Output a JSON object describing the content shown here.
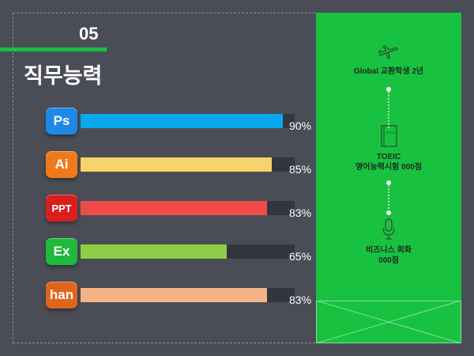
{
  "section": {
    "number": "05",
    "title": "직무능력"
  },
  "skills": [
    {
      "icon_label": "Ps",
      "percent": 90,
      "percent_label": "90%",
      "icon_color": "#1e88e5",
      "bar_color": "#0aa8ee"
    },
    {
      "icon_label": "Ai",
      "percent": 85,
      "percent_label": "85%",
      "icon_color": "#f07a1a",
      "bar_color": "#f8d36b"
    },
    {
      "icon_label": "PPT",
      "percent": 83,
      "percent_label": "83%",
      "icon_color": "#d91e1e",
      "bar_color": "#f04b4b"
    },
    {
      "icon_label": "Ex",
      "percent": 65,
      "percent_label": "65%",
      "icon_color": "#1fb93b",
      "bar_color": "#8ccf47"
    },
    {
      "icon_label": "han",
      "percent": 83,
      "percent_label": "83%",
      "icon_color": "#e0651c",
      "bar_color": "#f5b487"
    }
  ],
  "timeline": [
    {
      "icon": "airplane-icon",
      "lines": [
        "Global 교환학생 2년"
      ]
    },
    {
      "icon": "book-icon",
      "book_text": "TOEIC",
      "lines": [
        "TOEIC",
        "영어능력시험 000점"
      ]
    },
    {
      "icon": "microphone-icon",
      "lines": [
        "비즈니스 회화",
        "000점"
      ]
    }
  ],
  "colors": {
    "background": "#4a4d56",
    "accent": "#19c140",
    "track": "#33363d"
  }
}
